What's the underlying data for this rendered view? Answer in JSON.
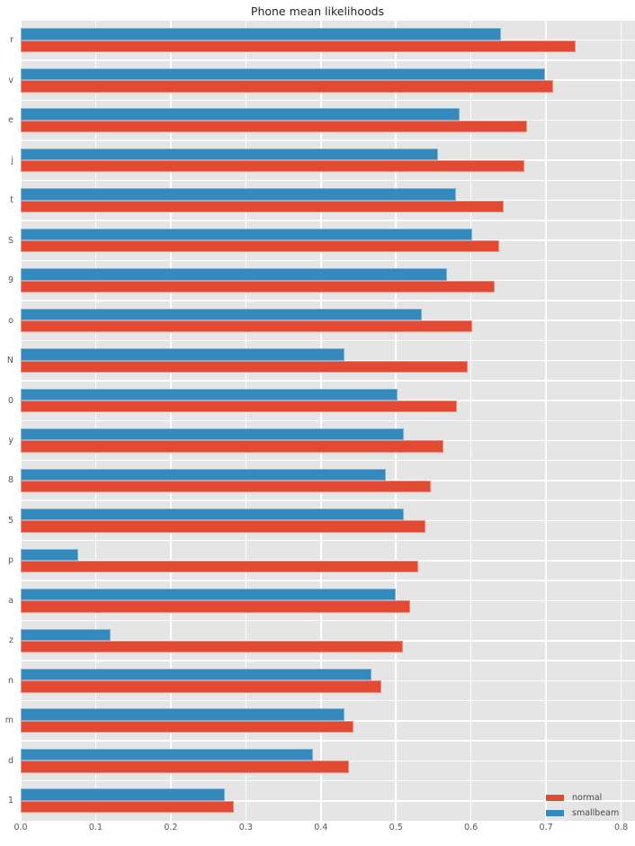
{
  "chart_data": {
    "type": "bar",
    "orientation": "horizontal",
    "title": "Phone mean likelihoods",
    "xlabel": "",
    "ylabel": "",
    "grid": true,
    "categories": [
      "r",
      "v",
      "e",
      "j",
      "t",
      "S",
      "9",
      "o",
      "N",
      "0",
      "y",
      "8",
      "5",
      "p",
      "a",
      "z",
      "n",
      "m",
      "d",
      "1"
    ],
    "series": [
      {
        "name": "normal",
        "color": "#E24A33",
        "slot": 1,
        "values": [
          0.74,
          0.709,
          0.675,
          0.671,
          0.643,
          0.637,
          0.631,
          0.602,
          0.596,
          0.581,
          0.563,
          0.546,
          0.539,
          0.53,
          0.519,
          0.509,
          0.481,
          0.444,
          0.437,
          0.284
        ]
      },
      {
        "name": "smallbeam",
        "color": "#348ABD",
        "slot": 0,
        "values": [
          0.64,
          0.699,
          0.585,
          0.556,
          0.58,
          0.602,
          0.568,
          0.535,
          0.431,
          0.502,
          0.51,
          0.487,
          0.51,
          0.077,
          0.5,
          0.12,
          0.467,
          0.431,
          0.39,
          0.272
        ]
      }
    ],
    "x_axis": {
      "min": 0,
      "max_visible": 0.8,
      "max_plot": 0.8185,
      "tick_labels": [
        "0.0",
        "0.1",
        "0.2",
        "0.3",
        "0.4",
        "0.5",
        "0.6",
        "0.7",
        "0.8"
      ],
      "tick_values": [
        0,
        0.1,
        0.2,
        0.3,
        0.4,
        0.5,
        0.6,
        0.7,
        0.8
      ]
    },
    "legend": {
      "position": "lower right",
      "entries": [
        {
          "label": "normal",
          "color": "#E24A33"
        },
        {
          "label": "smallbeam",
          "color": "#348ABD"
        }
      ]
    },
    "style": {
      "plot_bg": "#E5E5E5",
      "grid_color": "#FFFFFF",
      "tick_label_color": "#555555",
      "title_color": "#262626"
    }
  }
}
